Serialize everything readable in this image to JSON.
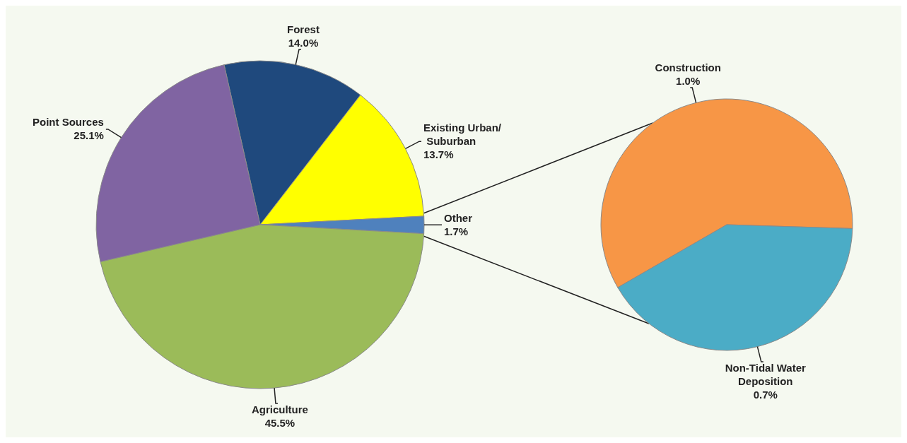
{
  "chart_data": [
    {
      "type": "pie",
      "categories": [
        "Forest",
        "Existing Urban/ Suburban",
        "Other",
        "Agriculture",
        "Point Sources"
      ],
      "values": [
        14.0,
        13.7,
        1.7,
        45.5,
        25.1
      ],
      "value_labels": [
        "14.0%",
        "13.7%",
        "1.7%",
        "45.5%",
        "25.1%"
      ],
      "colors": [
        "#1f497d",
        "#ffff00",
        "#4f81bd",
        "#9bbb59",
        "#8064a2"
      ]
    },
    {
      "type": "pie",
      "categories": [
        "Construction",
        "Non-Tidal Water Deposition"
      ],
      "values": [
        1.0,
        0.7
      ],
      "value_labels": [
        "1.0%",
        "0.7%"
      ],
      "colors": [
        "#f79646",
        "#4bacc6"
      ]
    }
  ]
}
